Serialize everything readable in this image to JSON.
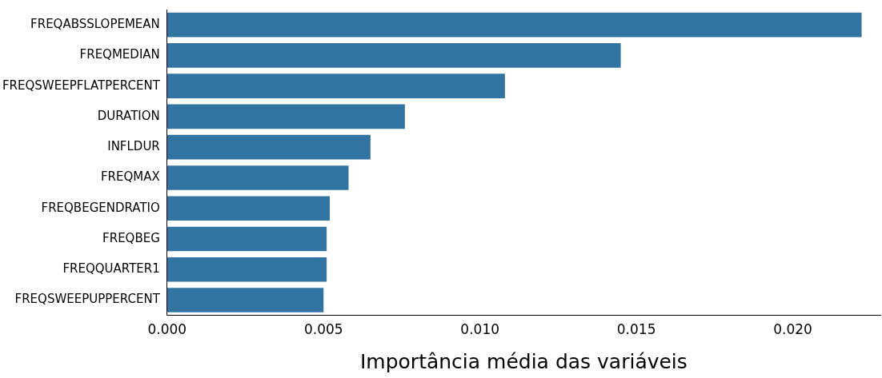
{
  "chart_data": {
    "type": "bar",
    "orientation": "horizontal",
    "xlabel": "Importância média das variáveis",
    "categories": [
      "FREQABSSLOPEMEAN",
      "FREQMEDIAN",
      "FREQSWEEPFLATPERCENT",
      "DURATION",
      "INFLDUR",
      "FREQMAX",
      "FREQBEGENDRATIO",
      "FREQBEG",
      "FREQQUARTER1",
      "FREQSWEEPUPPERCENT"
    ],
    "values": [
      0.0222,
      0.0145,
      0.0108,
      0.0076,
      0.0065,
      0.0058,
      0.0052,
      0.0051,
      0.0051,
      0.005
    ],
    "color": "#3274a1",
    "xlim": [
      0,
      0.0228
    ],
    "xticks": [
      {
        "value": 0,
        "label": "0.000"
      },
      {
        "value": 0.005,
        "label": "0.005"
      },
      {
        "value": 0.01,
        "label": "0.010"
      },
      {
        "value": 0.015,
        "label": "0.015"
      },
      {
        "value": 0.02,
        "label": "0.020"
      }
    ],
    "grid": false,
    "legend": false
  }
}
